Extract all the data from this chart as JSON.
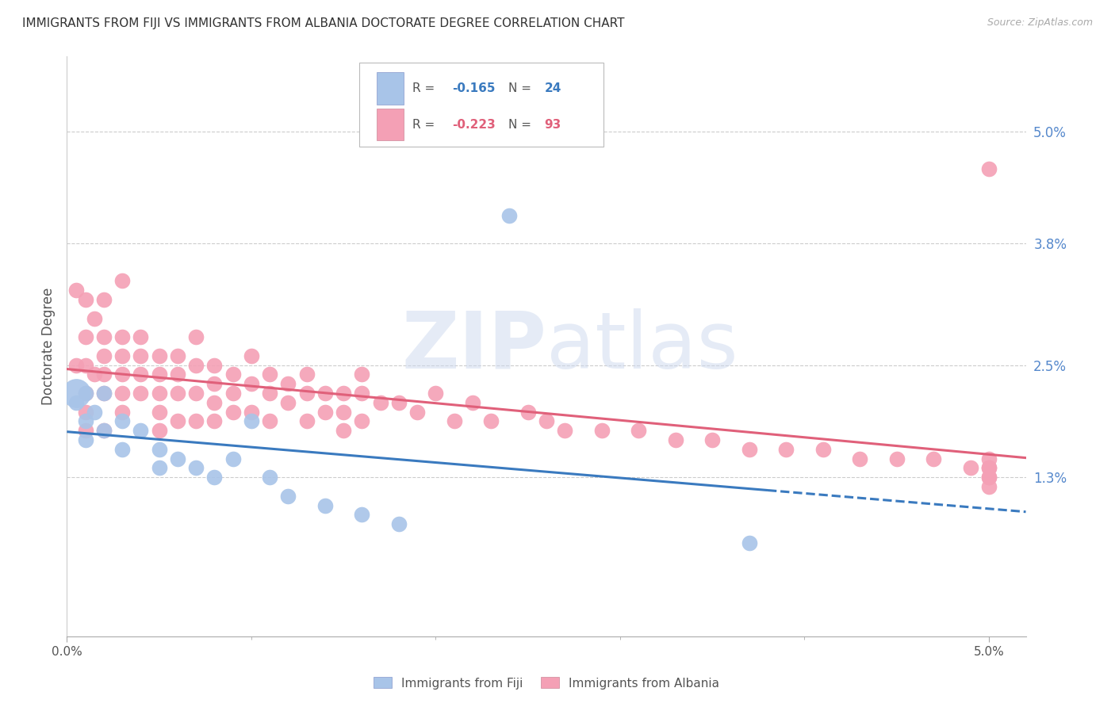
{
  "title": "IMMIGRANTS FROM FIJI VS IMMIGRANTS FROM ALBANIA DOCTORATE DEGREE CORRELATION CHART",
  "source": "Source: ZipAtlas.com",
  "ylabel": "Doctorate Degree",
  "ytick_labels": [
    "5.0%",
    "3.8%",
    "2.5%",
    "1.3%"
  ],
  "ytick_values": [
    0.05,
    0.038,
    0.025,
    0.013
  ],
  "xlim": [
    0.0,
    0.052
  ],
  "ylim": [
    -0.004,
    0.058
  ],
  "fiji_color": "#a8c4e8",
  "albania_color": "#f4a0b5",
  "fiji_line_color": "#3a7abf",
  "albania_line_color": "#e0607a",
  "fiji_R": -0.165,
  "fiji_N": 24,
  "albania_R": -0.223,
  "albania_N": 93,
  "fiji_label": "Immigrants from Fiji",
  "albania_label": "Immigrants from Albania",
  "watermark": "ZIPatlas",
  "fiji_x": [
    0.0005,
    0.001,
    0.001,
    0.001,
    0.0015,
    0.002,
    0.002,
    0.003,
    0.003,
    0.004,
    0.005,
    0.005,
    0.006,
    0.007,
    0.008,
    0.009,
    0.01,
    0.011,
    0.012,
    0.014,
    0.016,
    0.018,
    0.024,
    0.037
  ],
  "fiji_y": [
    0.021,
    0.022,
    0.019,
    0.017,
    0.02,
    0.022,
    0.018,
    0.019,
    0.016,
    0.018,
    0.016,
    0.014,
    0.015,
    0.014,
    0.013,
    0.015,
    0.019,
    0.013,
    0.011,
    0.01,
    0.009,
    0.008,
    0.041,
    0.006
  ],
  "albania_x": [
    0.0005,
    0.0005,
    0.001,
    0.001,
    0.001,
    0.001,
    0.001,
    0.001,
    0.0015,
    0.0015,
    0.002,
    0.002,
    0.002,
    0.002,
    0.002,
    0.002,
    0.003,
    0.003,
    0.003,
    0.003,
    0.003,
    0.003,
    0.004,
    0.004,
    0.004,
    0.004,
    0.005,
    0.005,
    0.005,
    0.005,
    0.005,
    0.006,
    0.006,
    0.006,
    0.006,
    0.007,
    0.007,
    0.007,
    0.007,
    0.008,
    0.008,
    0.008,
    0.008,
    0.009,
    0.009,
    0.009,
    0.01,
    0.01,
    0.01,
    0.011,
    0.011,
    0.011,
    0.012,
    0.012,
    0.013,
    0.013,
    0.013,
    0.014,
    0.014,
    0.015,
    0.015,
    0.015,
    0.016,
    0.016,
    0.016,
    0.017,
    0.018,
    0.019,
    0.02,
    0.021,
    0.022,
    0.023,
    0.025,
    0.026,
    0.027,
    0.029,
    0.031,
    0.033,
    0.035,
    0.037,
    0.039,
    0.041,
    0.043,
    0.045,
    0.047,
    0.049,
    0.05,
    0.05,
    0.05,
    0.05,
    0.05,
    0.05,
    0.05
  ],
  "albania_y": [
    0.033,
    0.025,
    0.032,
    0.028,
    0.025,
    0.022,
    0.02,
    0.018,
    0.03,
    0.024,
    0.032,
    0.028,
    0.026,
    0.024,
    0.022,
    0.018,
    0.034,
    0.028,
    0.026,
    0.024,
    0.022,
    0.02,
    0.028,
    0.026,
    0.024,
    0.022,
    0.026,
    0.024,
    0.022,
    0.02,
    0.018,
    0.026,
    0.024,
    0.022,
    0.019,
    0.028,
    0.025,
    0.022,
    0.019,
    0.025,
    0.023,
    0.021,
    0.019,
    0.024,
    0.022,
    0.02,
    0.026,
    0.023,
    0.02,
    0.024,
    0.022,
    0.019,
    0.023,
    0.021,
    0.024,
    0.022,
    0.019,
    0.022,
    0.02,
    0.022,
    0.02,
    0.018,
    0.024,
    0.022,
    0.019,
    0.021,
    0.021,
    0.02,
    0.022,
    0.019,
    0.021,
    0.019,
    0.02,
    0.019,
    0.018,
    0.018,
    0.018,
    0.017,
    0.017,
    0.016,
    0.016,
    0.016,
    0.015,
    0.015,
    0.015,
    0.014,
    0.015,
    0.014,
    0.013,
    0.013,
    0.014,
    0.012,
    0.046
  ]
}
